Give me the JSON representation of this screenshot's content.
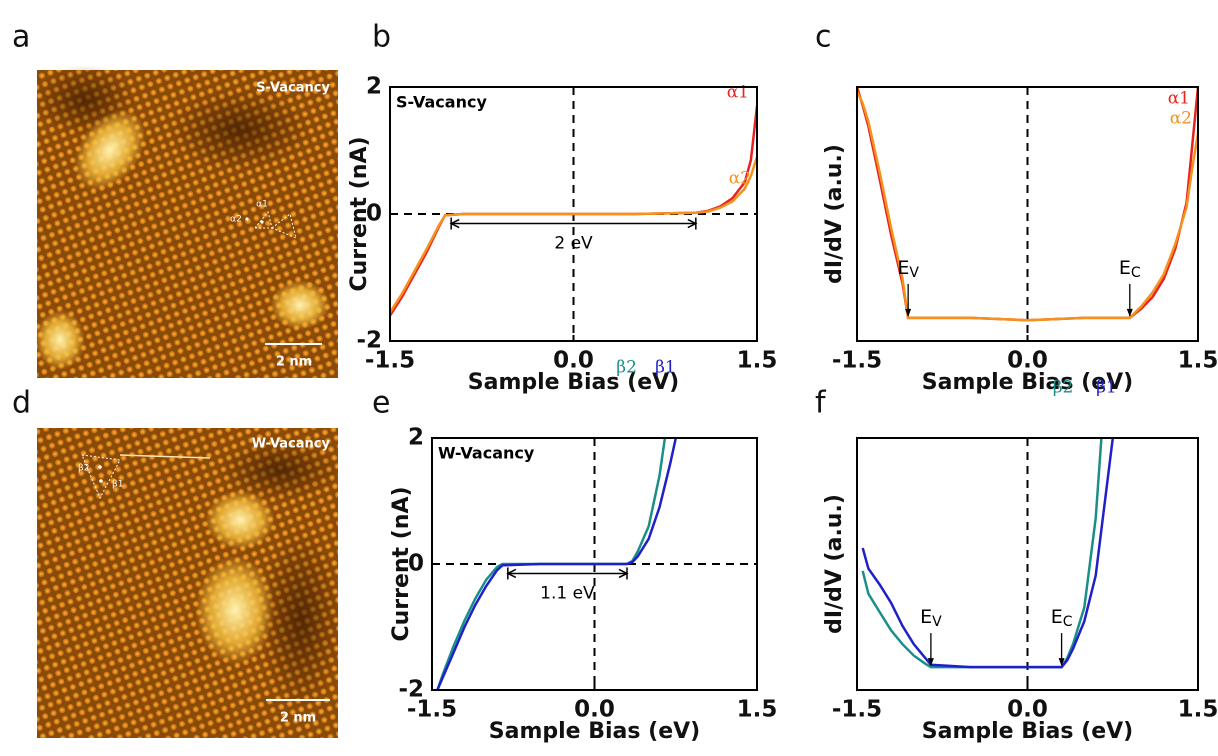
{
  "panels": [
    "a",
    "b",
    "c",
    "d",
    "e",
    "f"
  ],
  "images": [
    {
      "label": "S-Vacancy",
      "scale_bar": "2 nm",
      "marks": [
        "α1",
        "α2"
      ]
    },
    {
      "label": "W-Vacancy",
      "scale_bar": "2 nm",
      "marks": [
        "β2",
        "β1"
      ]
    }
  ],
  "chart_data": [
    {
      "type": "line",
      "title": "S-Vacancy",
      "xlabel": "Sample Bias (eV)",
      "ylabel": "Current (nA)",
      "xlim": [
        -1.5,
        1.5
      ],
      "ylim": [
        -2,
        2
      ],
      "xticks": [
        -1.5,
        {
          "value": 0,
          "label": "0.0"
        },
        1.5
      ],
      "yticks": [
        -2,
        0,
        2
      ],
      "x": [
        -1.5,
        -1.4,
        -1.3,
        -1.2,
        -1.1,
        -1.05,
        -0.9,
        -0.5,
        0,
        0.5,
        1.0,
        1.1,
        1.2,
        1.3,
        1.4,
        1.45,
        1.5
      ],
      "series": [
        {
          "name": "α1",
          "color": "#e8231e",
          "values": [
            -1.6,
            -1.3,
            -0.95,
            -0.6,
            -0.2,
            -0.02,
            0,
            0,
            0,
            0,
            0.02,
            0.05,
            0.12,
            0.25,
            0.5,
            0.85,
            1.7
          ]
        },
        {
          "name": "α2",
          "color": "#f5921e",
          "values": [
            -1.55,
            -1.25,
            -0.9,
            -0.55,
            -0.18,
            -0.02,
            0,
            0,
            0,
            0,
            0.02,
            0.04,
            0.1,
            0.2,
            0.4,
            0.6,
            0.9
          ]
        }
      ],
      "annotations": [
        {
          "text": "2 eV",
          "x1": -1.0,
          "x2": 1.0,
          "y": -0.15
        }
      ]
    },
    {
      "type": "line",
      "xlabel": "Sample Bias (eV)",
      "ylabel": "dI/dV (a.u.)",
      "xlim": [
        -1.5,
        1.5
      ],
      "ylim": [
        -1,
        10
      ],
      "xticks": [
        -1.5,
        {
          "value": 0,
          "label": "0.0"
        },
        1.5
      ],
      "x": [
        -1.5,
        -1.45,
        -1.4,
        -1.3,
        -1.2,
        -1.1,
        -1.05,
        -0.5,
        0,
        0.5,
        0.9,
        1.0,
        1.1,
        1.2,
        1.3,
        1.4,
        1.45,
        1.5
      ],
      "series": [
        {
          "name": "α1",
          "color": "#e8231e",
          "values": [
            10,
            9.2,
            8.3,
            6.0,
            3.6,
            1.5,
            0,
            0,
            -0.1,
            0,
            0,
            0.4,
            0.9,
            1.7,
            3.0,
            5.0,
            7.5,
            10
          ]
        },
        {
          "name": "α2",
          "color": "#f5921e",
          "values": [
            9.8,
            9.3,
            8.5,
            6.3,
            3.9,
            1.7,
            0,
            0,
            -0.1,
            0,
            0,
            0.5,
            1.1,
            1.9,
            3.2,
            4.8,
            6.5,
            8.0
          ]
        }
      ],
      "annotations": [
        {
          "text": "E",
          "sub": "V",
          "x": -1.05,
          "y": 0
        },
        {
          "text": "E",
          "sub": "C",
          "x": 0.9,
          "y": 0
        }
      ]
    },
    {
      "type": "line",
      "title": "W-Vacancy",
      "xlabel": "Sample Bias (eV)",
      "ylabel": "Current (nA)",
      "xlim": [
        -1.5,
        1.5
      ],
      "ylim": [
        -2,
        2
      ],
      "xticks": [
        -1.5,
        {
          "value": 0,
          "label": "0.0"
        },
        1.5
      ],
      "yticks": [
        -2,
        0,
        2
      ],
      "x": [
        -1.45,
        -1.4,
        -1.3,
        -1.2,
        -1.1,
        -1.0,
        -0.9,
        -0.85,
        -0.5,
        0,
        0.3,
        0.35,
        0.4,
        0.5,
        0.6,
        0.65,
        0.7,
        0.75
      ],
      "series": [
        {
          "name": "β2",
          "color": "#1a8f8a",
          "values": [
            -2,
            -1.75,
            -1.3,
            -0.9,
            -0.55,
            -0.25,
            -0.05,
            0,
            0,
            0,
            0,
            0.05,
            0.2,
            0.6,
            1.4,
            2,
            null,
            null
          ]
        },
        {
          "name": "β1",
          "color": "#2020c8",
          "values": [
            -2,
            -1.8,
            -1.4,
            -1.0,
            -0.65,
            -0.35,
            -0.1,
            -0.02,
            0,
            0,
            0,
            0.03,
            0.12,
            0.4,
            0.9,
            1.25,
            1.6,
            2
          ]
        }
      ],
      "annotations": [
        {
          "text": "1.1 eV",
          "x1": -0.8,
          "x2": 0.3,
          "y": -0.15
        }
      ]
    },
    {
      "type": "line",
      "xlabel": "Sample Bias (eV)",
      "ylabel": "dI/dV (a.u.)",
      "xlim": [
        -1.5,
        1.5
      ],
      "ylim": [
        -1,
        10
      ],
      "xticks": [
        -1.5,
        {
          "value": 0,
          "label": "0.0"
        },
        1.5
      ],
      "x": [
        -1.45,
        -1.4,
        -1.3,
        -1.2,
        -1.1,
        -1.0,
        -0.9,
        -0.85,
        -0.5,
        0,
        0.3,
        0.35,
        0.4,
        0.5,
        0.6,
        0.65,
        0.7,
        0.75
      ],
      "series": [
        {
          "name": "β2",
          "color": "#1a8f8a",
          "values": [
            4.2,
            3.2,
            2.4,
            1.6,
            1.0,
            0.5,
            0.15,
            0,
            0,
            0,
            0,
            0.4,
            1.0,
            2.6,
            6.5,
            10,
            null,
            null
          ]
        },
        {
          "name": "β1",
          "color": "#2020c8",
          "values": [
            5.2,
            4.3,
            3.6,
            2.8,
            1.8,
            1.0,
            0.4,
            0.1,
            0,
            0,
            0,
            0.3,
            0.8,
            2.0,
            4.0,
            6.0,
            8.0,
            10
          ]
        }
      ],
      "annotations": [
        {
          "text": "E",
          "sub": "V",
          "x": -0.85,
          "y": 0
        },
        {
          "text": "E",
          "sub": "C",
          "x": 0.3,
          "y": 0
        }
      ]
    }
  ]
}
